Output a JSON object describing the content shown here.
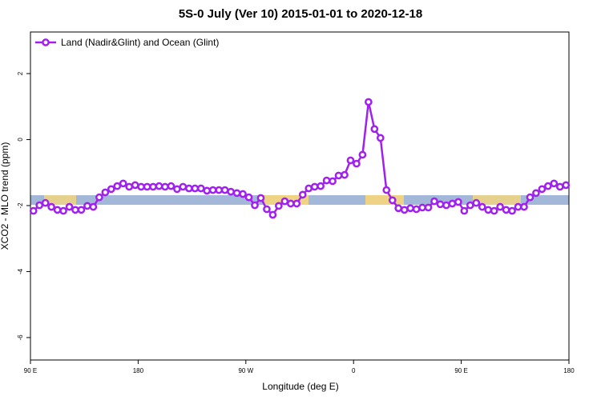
{
  "chart_data": {
    "type": "line",
    "title": "5S-0 July (Ver 10)   2015-01-01 to 2020-12-18",
    "x_label": "Longitude (deg E)",
    "y_label": "XCO2 - MLO trend (ppm)",
    "xlim": [
      90,
      540
    ],
    "ylim": [
      -6.68,
      3.26
    ],
    "xticks": [
      {
        "value": 90,
        "label": "90 E"
      },
      180,
      {
        "value": 270,
        "label": "90 W"
      },
      {
        "value": 360,
        "label": "0"
      },
      {
        "value": 450,
        "label": "90 E"
      },
      {
        "value": 540,
        "label": "180"
      }
    ],
    "yticks": [
      -6,
      -4,
      -2,
      0,
      2
    ],
    "legend_position": "top-left",
    "x": [
      92.5,
      97.5,
      102.5,
      107.5,
      112.5,
      117.5,
      122.5,
      127.5,
      132.5,
      137.5,
      142.5,
      147.5,
      152.5,
      157.5,
      162.5,
      167.5,
      172.5,
      177.5,
      182.5,
      187.5,
      192.5,
      197.5,
      202.5,
      207.5,
      212.5,
      217.5,
      222.5,
      227.5,
      232.5,
      237.5,
      242.5,
      247.5,
      252.5,
      257.5,
      262.5,
      267.5,
      272.5,
      277.5,
      282.5,
      287.5,
      292.5,
      297.5,
      302.5,
      307.5,
      312.5,
      317.5,
      322.5,
      327.5,
      332.5,
      337.5,
      342.5,
      347.5,
      352.5,
      357.5,
      362.5,
      367.5,
      372.5,
      377.5,
      382.5,
      387.5,
      392.5,
      397.5,
      402.5,
      407.5,
      412.5,
      417.5,
      422.5,
      427.5,
      432.5,
      437.5,
      442.5,
      447.5,
      452.5,
      457.5,
      462.5,
      467.5,
      472.5,
      477.5,
      482.5,
      487.5,
      492.5,
      497.5,
      502.5,
      507.5,
      512.5,
      517.5,
      522.5,
      527.5,
      532.5,
      537.5
    ],
    "series": [
      {
        "name": "Land (Nadir&Glint) and Ocean (Glint)",
        "color": "#a020f0",
        "values": [
          -2.16,
          -1.99,
          -1.92,
          -2.04,
          -2.13,
          -2.16,
          -2.04,
          -2.13,
          -2.13,
          -2.01,
          -2.04,
          -1.75,
          -1.6,
          -1.5,
          -1.41,
          -1.33,
          -1.43,
          -1.38,
          -1.43,
          -1.43,
          -1.43,
          -1.41,
          -1.43,
          -1.41,
          -1.5,
          -1.43,
          -1.48,
          -1.48,
          -1.48,
          -1.55,
          -1.53,
          -1.53,
          -1.53,
          -1.58,
          -1.62,
          -1.65,
          -1.75,
          -1.99,
          -1.77,
          -2.11,
          -2.28,
          -2.01,
          -1.87,
          -1.94,
          -1.94,
          -1.67,
          -1.48,
          -1.43,
          -1.41,
          -1.24,
          -1.26,
          -1.09,
          -1.07,
          -0.63,
          -0.73,
          -0.46,
          1.14,
          0.32,
          0.05,
          -1.53,
          -1.84,
          -2.08,
          -2.13,
          -2.08,
          -2.11,
          -2.06,
          -2.06,
          -1.87,
          -1.96,
          -1.99,
          -1.94,
          -1.89,
          -2.16,
          -1.99,
          -1.92,
          -2.04,
          -2.13,
          -2.16,
          -2.04,
          -2.13,
          -2.16,
          -2.04,
          -2.04,
          -1.75,
          -1.62,
          -1.5,
          -1.41,
          -1.33,
          -1.43,
          -1.38
        ]
      }
    ]
  }
}
